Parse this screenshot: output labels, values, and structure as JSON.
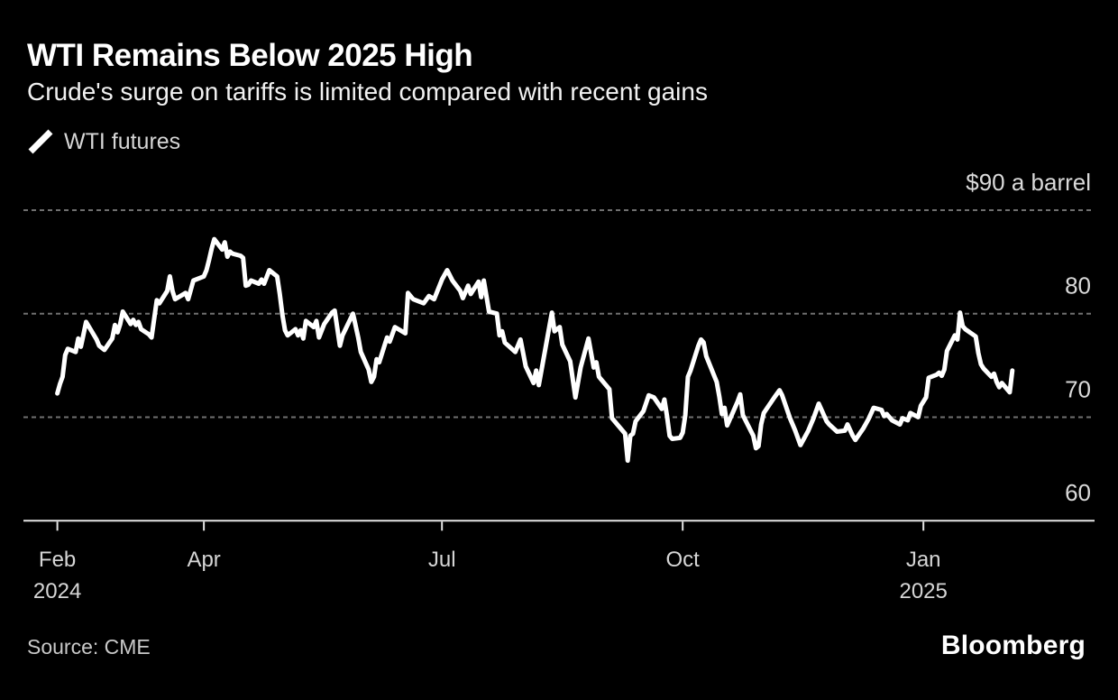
{
  "header": {
    "title": "WTI Remains Below 2025 High",
    "subtitle": "Crude's surge on tariffs is limited compared with recent gains"
  },
  "legend": {
    "series_label": "WTI futures"
  },
  "footer": {
    "source": "Source: CME",
    "brand": "Bloomberg"
  },
  "chart_data": {
    "type": "line",
    "title": "WTI Remains Below 2025 High",
    "subtitle": "Crude's surge on tariffs is limited compared with recent gains",
    "unit_label": "$90 a barrel",
    "ylabel": "",
    "xlabel": "",
    "ylim": [
      60,
      91
    ],
    "y_ticks": [
      90,
      80,
      70,
      60
    ],
    "grid": "dashed-horizontal",
    "legend_position": "top-left",
    "x_ticks": [
      {
        "label": "Feb",
        "sublabel": "2024",
        "date": "2024-02-05"
      },
      {
        "label": "Apr",
        "sublabel": "",
        "date": "2024-04-01"
      },
      {
        "label": "Jul",
        "sublabel": "",
        "date": "2024-07-01"
      },
      {
        "label": "Oct",
        "sublabel": "",
        "date": "2024-10-01"
      },
      {
        "label": "Jan",
        "sublabel": "2025",
        "date": "2025-01-01"
      }
    ],
    "colors": {
      "background": "#000000",
      "line": "#ffffff",
      "grid": "#707070",
      "axis": "#e6e6e6",
      "labels": "#dadada"
    },
    "series": [
      {
        "name": "WTI futures",
        "points": [
          [
            "2024-02-05",
            72.3
          ],
          [
            "2024-02-06",
            73.2
          ],
          [
            "2024-02-07",
            73.9
          ],
          [
            "2024-02-08",
            76.0
          ],
          [
            "2024-02-09",
            76.6
          ],
          [
            "2024-02-12",
            76.3
          ],
          [
            "2024-02-13",
            77.6
          ],
          [
            "2024-02-14",
            76.8
          ],
          [
            "2024-02-15",
            78.0
          ],
          [
            "2024-02-16",
            79.2
          ],
          [
            "2024-02-20",
            77.5
          ],
          [
            "2024-02-21",
            76.9
          ],
          [
            "2024-02-23",
            76.5
          ],
          [
            "2024-02-26",
            77.6
          ],
          [
            "2024-02-27",
            78.9
          ],
          [
            "2024-02-28",
            78.2
          ],
          [
            "2024-02-29",
            79.0
          ],
          [
            "2024-03-01",
            80.2
          ],
          [
            "2024-03-04",
            79.0
          ],
          [
            "2024-03-05",
            79.4
          ],
          [
            "2024-03-06",
            78.9
          ],
          [
            "2024-03-07",
            79.2
          ],
          [
            "2024-03-08",
            78.5
          ],
          [
            "2024-03-11",
            78.0
          ],
          [
            "2024-03-12",
            77.7
          ],
          [
            "2024-03-14",
            81.3
          ],
          [
            "2024-03-15",
            81.0
          ],
          [
            "2024-03-18",
            82.2
          ],
          [
            "2024-03-19",
            83.6
          ],
          [
            "2024-03-20",
            82.2
          ],
          [
            "2024-03-21",
            81.4
          ],
          [
            "2024-03-25",
            82.0
          ],
          [
            "2024-03-26",
            81.4
          ],
          [
            "2024-03-28",
            83.2
          ],
          [
            "2024-04-01",
            83.6
          ],
          [
            "2024-04-02",
            84.2
          ],
          [
            "2024-04-03",
            85.2
          ],
          [
            "2024-04-04",
            86.3
          ],
          [
            "2024-04-05",
            87.2
          ],
          [
            "2024-04-08",
            86.2
          ],
          [
            "2024-04-09",
            86.9
          ],
          [
            "2024-04-10",
            85.5
          ],
          [
            "2024-04-11",
            86.0
          ],
          [
            "2024-04-12",
            85.8
          ],
          [
            "2024-04-15",
            85.6
          ],
          [
            "2024-04-16",
            85.4
          ],
          [
            "2024-04-17",
            82.7
          ],
          [
            "2024-04-18",
            82.8
          ],
          [
            "2024-04-19",
            83.2
          ],
          [
            "2024-04-22",
            82.9
          ],
          [
            "2024-04-23",
            83.3
          ],
          [
            "2024-04-24",
            82.9
          ],
          [
            "2024-04-26",
            84.2
          ],
          [
            "2024-04-29",
            83.6
          ],
          [
            "2024-04-30",
            81.9
          ],
          [
            "2024-05-01",
            79.9
          ],
          [
            "2024-05-02",
            78.4
          ],
          [
            "2024-05-03",
            77.9
          ],
          [
            "2024-05-06",
            78.5
          ],
          [
            "2024-05-07",
            77.9
          ],
          [
            "2024-05-08",
            78.4
          ],
          [
            "2024-05-09",
            77.6
          ],
          [
            "2024-05-10",
            79.3
          ],
          [
            "2024-05-13",
            78.7
          ],
          [
            "2024-05-14",
            79.3
          ],
          [
            "2024-05-15",
            77.7
          ],
          [
            "2024-05-17",
            79.0
          ],
          [
            "2024-05-20",
            80.1
          ],
          [
            "2024-05-21",
            80.3
          ],
          [
            "2024-05-23",
            76.9
          ],
          [
            "2024-05-24",
            77.9
          ],
          [
            "2024-05-28",
            80.0
          ],
          [
            "2024-05-30",
            77.7
          ],
          [
            "2024-05-31",
            76.3
          ],
          [
            "2024-06-03",
            74.6
          ],
          [
            "2024-06-04",
            73.4
          ],
          [
            "2024-06-05",
            73.9
          ],
          [
            "2024-06-06",
            75.6
          ],
          [
            "2024-06-07",
            75.3
          ],
          [
            "2024-06-10",
            77.7
          ],
          [
            "2024-06-11",
            77.3
          ],
          [
            "2024-06-13",
            78.7
          ],
          [
            "2024-06-17",
            78.1
          ],
          [
            "2024-06-18",
            82.0
          ],
          [
            "2024-06-20",
            81.4
          ],
          [
            "2024-06-24",
            81.0
          ],
          [
            "2024-06-26",
            81.7
          ],
          [
            "2024-06-28",
            81.4
          ],
          [
            "2024-07-01",
            83.3
          ],
          [
            "2024-07-03",
            84.2
          ],
          [
            "2024-07-05",
            83.2
          ],
          [
            "2024-07-08",
            82.2
          ],
          [
            "2024-07-09",
            81.5
          ],
          [
            "2024-07-11",
            82.7
          ],
          [
            "2024-07-12",
            81.9
          ],
          [
            "2024-07-15",
            83.1
          ],
          [
            "2024-07-16",
            81.6
          ],
          [
            "2024-07-17",
            83.2
          ],
          [
            "2024-07-19",
            80.2
          ],
          [
            "2024-07-22",
            80.0
          ],
          [
            "2024-07-23",
            77.9
          ],
          [
            "2024-07-24",
            78.3
          ],
          [
            "2024-07-25",
            77.2
          ],
          [
            "2024-07-29",
            76.3
          ],
          [
            "2024-07-31",
            77.5
          ],
          [
            "2024-08-02",
            74.9
          ],
          [
            "2024-08-05",
            73.3
          ],
          [
            "2024-08-06",
            74.5
          ],
          [
            "2024-08-07",
            73.1
          ],
          [
            "2024-08-12",
            80.1
          ],
          [
            "2024-08-13",
            78.3
          ],
          [
            "2024-08-15",
            78.7
          ],
          [
            "2024-08-16",
            77.0
          ],
          [
            "2024-08-19",
            75.4
          ],
          [
            "2024-08-21",
            71.9
          ],
          [
            "2024-08-23",
            74.8
          ],
          [
            "2024-08-26",
            77.6
          ],
          [
            "2024-08-27",
            76.2
          ],
          [
            "2024-08-28",
            74.8
          ],
          [
            "2024-08-29",
            75.3
          ],
          [
            "2024-08-30",
            73.9
          ],
          [
            "2024-09-03",
            72.7
          ],
          [
            "2024-09-04",
            69.9
          ],
          [
            "2024-09-06",
            69.3
          ],
          [
            "2024-09-09",
            68.4
          ],
          [
            "2024-09-10",
            65.8
          ],
          [
            "2024-09-11",
            68.2
          ],
          [
            "2024-09-12",
            68.4
          ],
          [
            "2024-09-13",
            69.6
          ],
          [
            "2024-09-16",
            70.6
          ],
          [
            "2024-09-18",
            72.1
          ],
          [
            "2024-09-20",
            71.9
          ],
          [
            "2024-09-23",
            70.8
          ],
          [
            "2024-09-24",
            71.7
          ],
          [
            "2024-09-25",
            70.1
          ],
          [
            "2024-09-26",
            68.2
          ],
          [
            "2024-09-27",
            67.9
          ],
          [
            "2024-09-30",
            68.0
          ],
          [
            "2024-10-01",
            68.5
          ],
          [
            "2024-10-02",
            70.2
          ],
          [
            "2024-10-03",
            73.9
          ],
          [
            "2024-10-04",
            74.5
          ],
          [
            "2024-10-07",
            76.9
          ],
          [
            "2024-10-08",
            77.5
          ],
          [
            "2024-10-09",
            77.2
          ],
          [
            "2024-10-10",
            75.9
          ],
          [
            "2024-10-14",
            73.4
          ],
          [
            "2024-10-15",
            72.0
          ],
          [
            "2024-10-16",
            70.3
          ],
          [
            "2024-10-17",
            70.9
          ],
          [
            "2024-10-18",
            69.2
          ],
          [
            "2024-10-22",
            71.5
          ],
          [
            "2024-10-23",
            72.2
          ],
          [
            "2024-10-24",
            70.2
          ],
          [
            "2024-10-28",
            68.2
          ],
          [
            "2024-10-29",
            67.0
          ],
          [
            "2024-10-30",
            67.2
          ],
          [
            "2024-10-31",
            69.3
          ],
          [
            "2024-11-01",
            70.4
          ],
          [
            "2024-11-05",
            71.9
          ],
          [
            "2024-11-07",
            72.6
          ],
          [
            "2024-11-08",
            72.1
          ],
          [
            "2024-11-11",
            69.9
          ],
          [
            "2024-11-13",
            68.7
          ],
          [
            "2024-11-15",
            67.3
          ],
          [
            "2024-11-18",
            68.7
          ],
          [
            "2024-11-20",
            69.9
          ],
          [
            "2024-11-22",
            71.3
          ],
          [
            "2024-11-25",
            69.6
          ],
          [
            "2024-11-26",
            69.3
          ],
          [
            "2024-11-29",
            68.6
          ],
          [
            "2024-12-02",
            68.7
          ],
          [
            "2024-12-03",
            69.3
          ],
          [
            "2024-12-05",
            68.2
          ],
          [
            "2024-12-06",
            67.8
          ],
          [
            "2024-12-09",
            68.9
          ],
          [
            "2024-12-11",
            69.8
          ],
          [
            "2024-12-13",
            70.9
          ],
          [
            "2024-12-16",
            70.7
          ],
          [
            "2024-12-17",
            70.1
          ],
          [
            "2024-12-18",
            70.3
          ],
          [
            "2024-12-20",
            69.7
          ],
          [
            "2024-12-23",
            69.3
          ],
          [
            "2024-12-24",
            69.9
          ],
          [
            "2024-12-26",
            69.7
          ],
          [
            "2024-12-27",
            70.4
          ],
          [
            "2024-12-30",
            70.0
          ],
          [
            "2024-12-31",
            71.1
          ],
          [
            "2025-01-02",
            71.9
          ],
          [
            "2025-01-03",
            73.8
          ],
          [
            "2025-01-06",
            74.1
          ],
          [
            "2025-01-07",
            74.3
          ],
          [
            "2025-01-08",
            74.0
          ],
          [
            "2025-01-09",
            74.6
          ],
          [
            "2025-01-10",
            76.4
          ],
          [
            "2025-01-13",
            77.9
          ],
          [
            "2025-01-14",
            77.5
          ],
          [
            "2025-01-15",
            80.1
          ],
          [
            "2025-01-16",
            78.8
          ],
          [
            "2025-01-17",
            78.5
          ],
          [
            "2025-01-21",
            77.8
          ],
          [
            "2025-01-22",
            76.2
          ],
          [
            "2025-01-23",
            75.1
          ],
          [
            "2025-01-24",
            74.7
          ],
          [
            "2025-01-27",
            73.9
          ],
          [
            "2025-01-28",
            74.2
          ],
          [
            "2025-01-29",
            73.4
          ],
          [
            "2025-01-30",
            72.9
          ],
          [
            "2025-01-31",
            73.3
          ],
          [
            "2025-02-03",
            72.4
          ],
          [
            "2025-02-04",
            74.5
          ]
        ]
      }
    ]
  }
}
